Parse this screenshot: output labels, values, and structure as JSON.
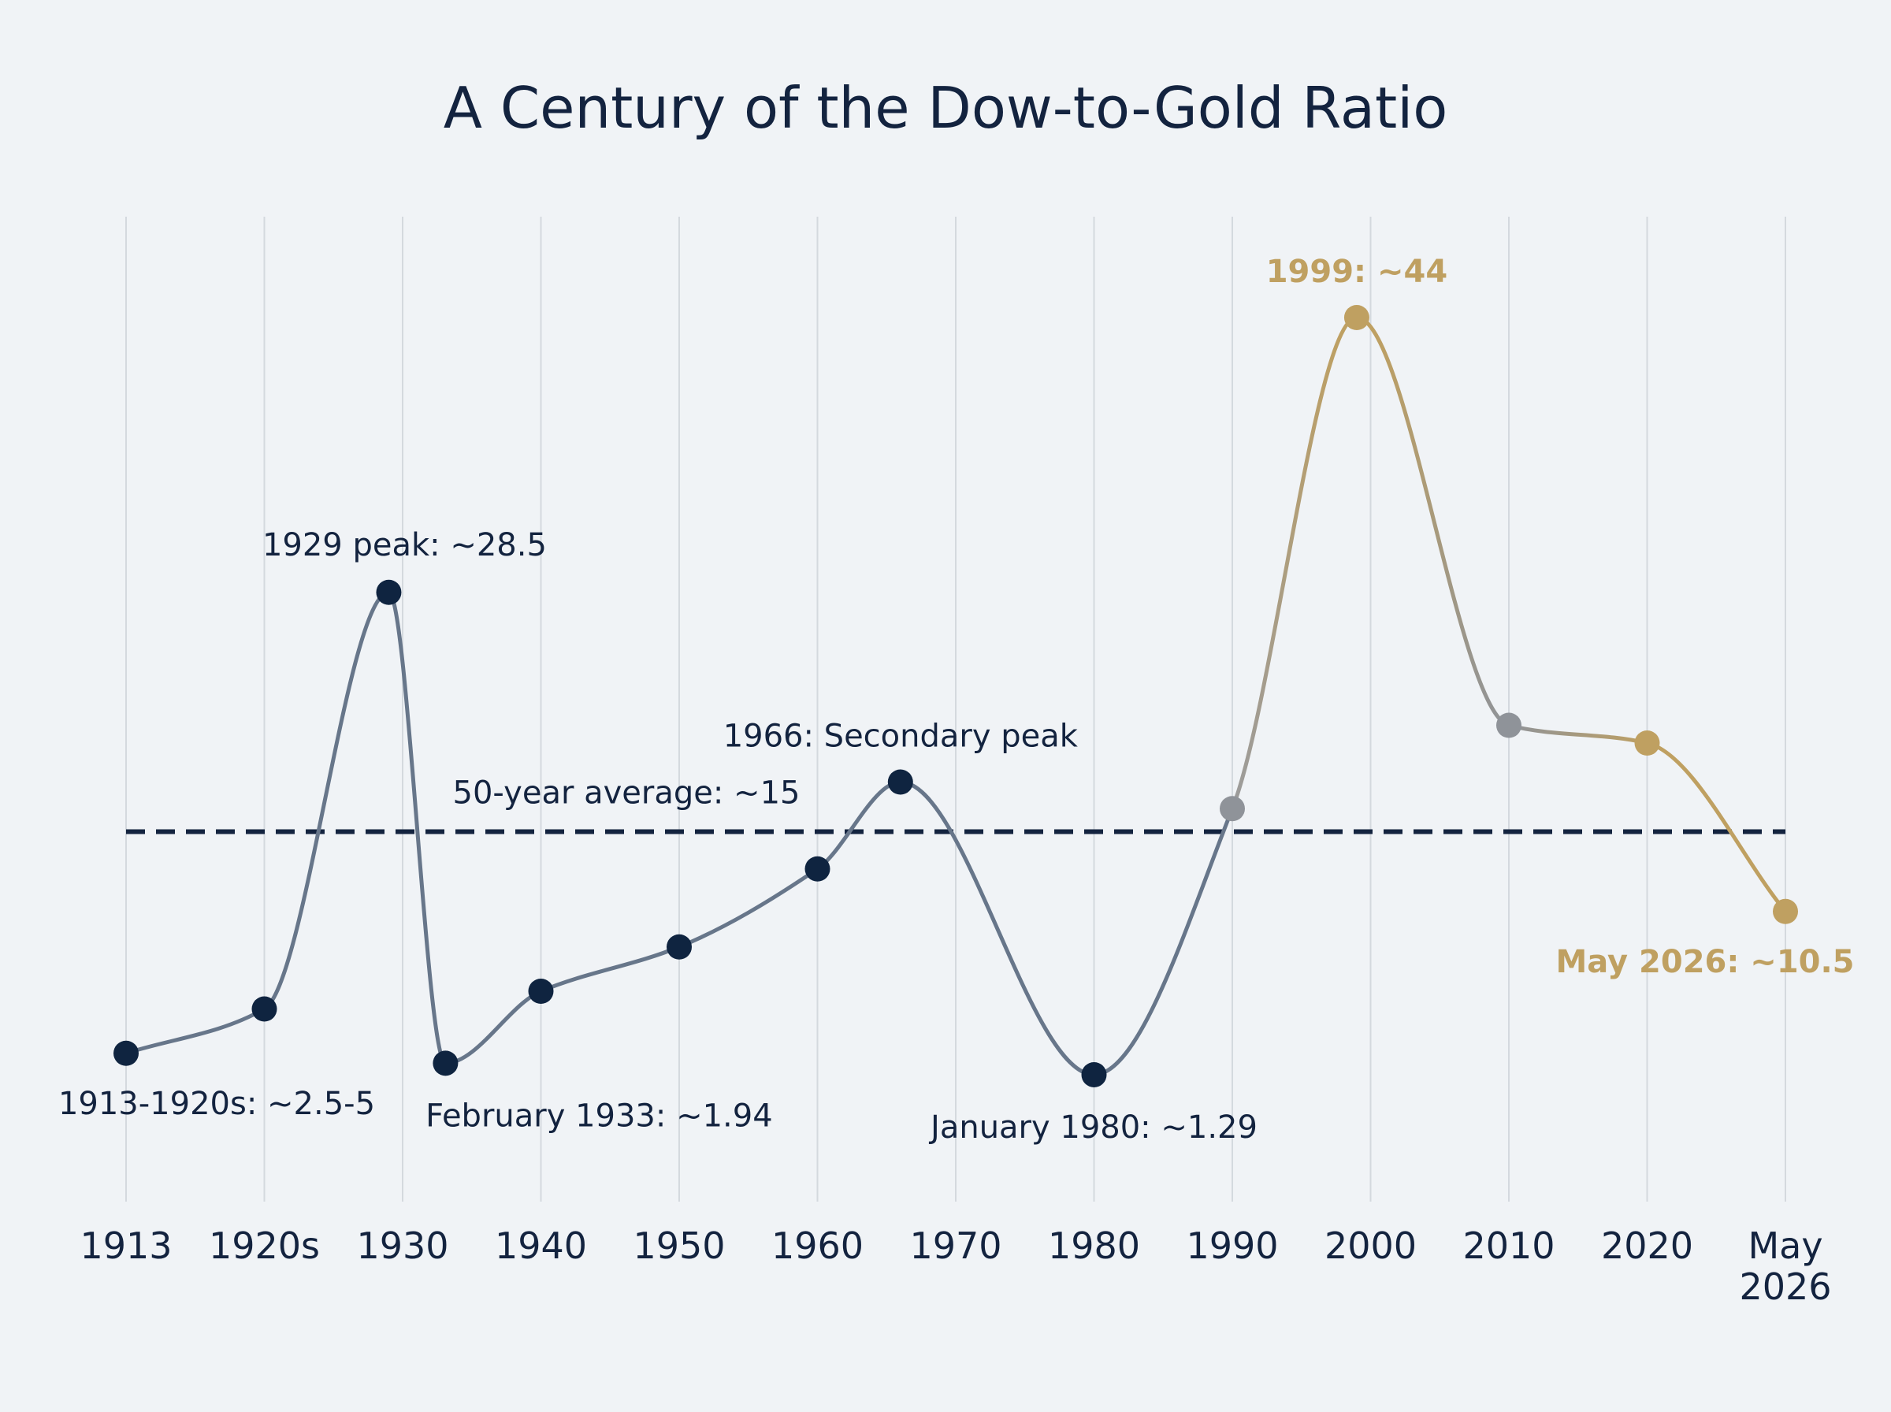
{
  "chart_data": {
    "type": "line",
    "title": "A Century of the Dow-to-Gold Ratio",
    "xlabel": "",
    "ylabel": "",
    "grid": "vertical",
    "x_ticks": [
      "1913",
      "1920s",
      "1930",
      "1940",
      "1950",
      "1960",
      "1970",
      "1980",
      "1990",
      "2000",
      "2010",
      "2020",
      "May 2026"
    ],
    "points": [
      {
        "x": 1913,
        "y": 2.5,
        "color": "#0f2440"
      },
      {
        "x": 1920,
        "y": 5,
        "color": "#0f2440"
      },
      {
        "x": 1929,
        "y": 28.5,
        "color": "#0f2440"
      },
      {
        "x": 1933.1,
        "y": 1.94,
        "color": "#0f2440"
      },
      {
        "x": 1940,
        "y": 6,
        "color": "#0f2440"
      },
      {
        "x": 1950,
        "y": 8.5,
        "color": "#0f2440"
      },
      {
        "x": 1960,
        "y": 12.9,
        "color": "#0f2440"
      },
      {
        "x": 1966,
        "y": 17.8,
        "color": "#0f2440"
      },
      {
        "x": 1980,
        "y": 1.29,
        "color": "#0f2440"
      },
      {
        "x": 1990,
        "y": 16.3,
        "color": "#8f9399"
      },
      {
        "x": 1999,
        "y": 44,
        "color": "#bfa061"
      },
      {
        "x": 2010,
        "y": 21,
        "color": "#8f9399"
      },
      {
        "x": 2020,
        "y": 20,
        "color": "#bfa061"
      },
      {
        "x": 2026.4,
        "y": 10.5,
        "color": "#bfa061"
      }
    ],
    "average_line": {
      "y": 15,
      "label": "50-year average: ~15",
      "color": "#13233f",
      "style": "dashed"
    },
    "annotations": [
      {
        "text": "1913-1920s: ~2.5-5",
        "x": 1913,
        "y": 2.5,
        "color": "#13233f",
        "bold": false
      },
      {
        "text": "1929 peak: ~28.5",
        "x": 1929,
        "y": 28.5,
        "color": "#13233f",
        "bold": false
      },
      {
        "text": "February 1933: ~1.94",
        "x": 1933.1,
        "y": 1.94,
        "color": "#13233f",
        "bold": false
      },
      {
        "text": "1966: Secondary peak",
        "x": 1966,
        "y": 17.8,
        "color": "#13233f",
        "bold": false
      },
      {
        "text": "January 1980: ~1.29",
        "x": 1980,
        "y": 1.29,
        "color": "#13233f",
        "bold": false
      },
      {
        "text": "1999: ~44",
        "x": 1999,
        "y": 44,
        "color": "#bfa061",
        "bold": true
      },
      {
        "text": "May 2026: ~10.5",
        "x": 2026.4,
        "y": 10.5,
        "color": "#bfa061",
        "bold": true
      }
    ],
    "colors": {
      "navy": "#0f2440",
      "slate_line": "#67768a",
      "gray_point": "#8f9399",
      "gold": "#bfa061",
      "grid": "#d4d9de",
      "background": "#f0f3f6"
    }
  }
}
